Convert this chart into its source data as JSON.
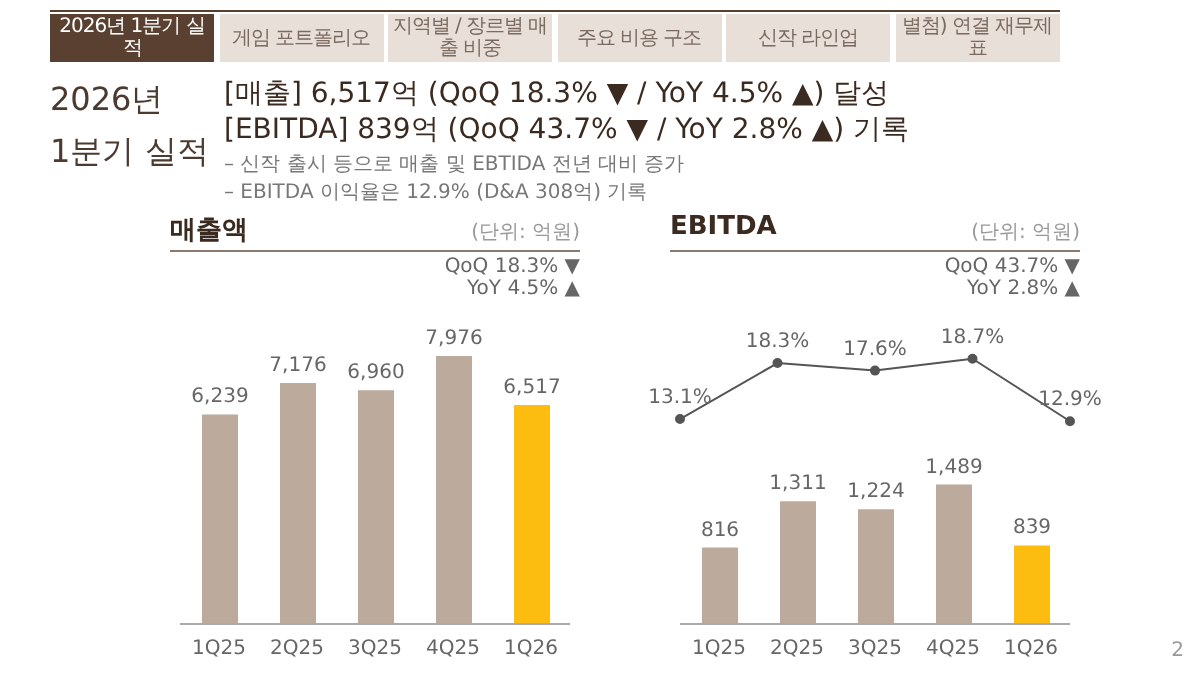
{
  "chart_data": [
    {
      "type": "bar",
      "title": "매출액",
      "annotations": [
        "2026년 1분기 실적",
        "게임 포트폴리오",
        "지역별 / 장르별 매출 비중",
        "주요 비용 구조",
        "신작 라인업",
        "별첨) 연결 재무제표",
        "2026년",
        "1분기 실적",
        "[매출] 6,517억 (QoQ 18.3% ▼ / YoY 4.5% ▲) 달성",
        "[EBITDA] 839억 (QoQ 43.7% ▼ / YoY 2.8% ▲) 기록",
        "–  신작 출시 등으로 매출 및 EBTIDA 전년 대비 증가",
        "–  EBITDA 이익율은 12.9% (D&A 308억) 기록",
        "2",
        "(단위: 억원)",
        "QoQ 18.3% ▼",
        "YoY 4.5% ▲"
      ],
      "categories": [
        "1Q25",
        "2Q25",
        "3Q25",
        "4Q25",
        "1Q26"
      ],
      "values": [
        6239,
        7176,
        6960,
        7976,
        6517
      ],
      "colors": [
        "#bcaa9c",
        "#bcaa9c",
        "#bcaa9c",
        "#bcaa9c",
        "#fdbd10"
      ],
      "value_labels": [
        "6,239",
        "7,176",
        "6,960",
        "7,976",
        "6,517"
      ]
    },
    {
      "type": "line",
      "title": "EBITDA",
      "tick_labels": false,
      "annotations": [
        "(단위: 억원)",
        "QoQ 43.7% ▼",
        "YoY 2.8% ▲"
      ],
      "categories": [
        null,
        null,
        null,
        null,
        null
      ],
      "values": [
        13.1,
        18.3,
        17.6,
        18.7,
        12.9
      ],
      "color": "#555555",
      "marker": "circle",
      "value_labels": [
        "13.1%",
        "18.3%",
        "17.6%",
        "18.7%",
        "12.9%"
      ]
    },
    {
      "type": "bar",
      "categories": [
        "1Q25",
        "2Q25",
        "3Q25",
        "4Q25",
        "1Q26"
      ],
      "values": [
        816,
        1311,
        1224,
        1489,
        839
      ],
      "colors": [
        "#bcaa9c",
        "#bcaa9c",
        "#bcaa9c",
        "#bcaa9c",
        "#fdbd10"
      ],
      "value_labels": [
        "816",
        "1,311",
        "1,224",
        "1,489",
        "839"
      ]
    }
  ]
}
